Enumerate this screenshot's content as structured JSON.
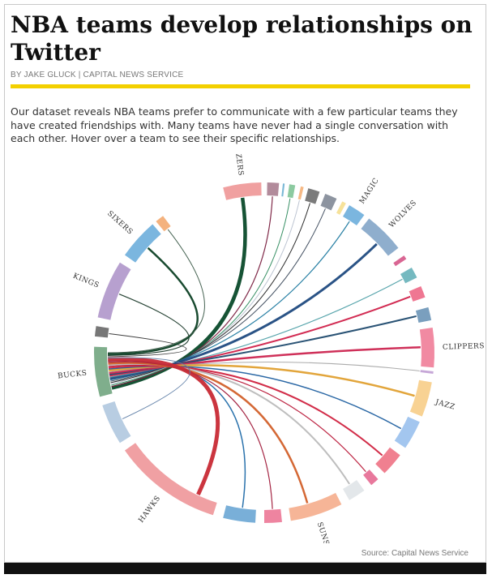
{
  "article": {
    "title": "NBA teams develop relationships on Twitter",
    "byline": "BY JAKE GLUCK | CAPITAL NEWS SERVICE",
    "intro": "Our dataset reveals NBA teams prefer to communicate with a few particular teams they have created friendships with. Many teams have never had a single conversation with each other. Hover over a team to see their specific relationships.",
    "source": "Source: Capital News Service"
  },
  "colors": {
    "accent_rule": "#f3d000",
    "footer_bar": "#111111"
  },
  "chart_data": {
    "type": "chord",
    "focus_team": "BUCKS",
    "groups": [
      {
        "label": "BLAZERS",
        "start": -14,
        "end": -1,
        "color": "#f0a0a0"
      },
      {
        "label": "",
        "start": 1,
        "end": 5,
        "color": "#b28b9b"
      },
      {
        "label": "",
        "start": 6.3,
        "end": 6.9,
        "color": "#7ab8d6"
      },
      {
        "label": "",
        "start": 8.5,
        "end": 10.5,
        "color": "#8ccaa0"
      },
      {
        "label": "",
        "start": 12.4,
        "end": 13.4,
        "color": "#f6b985"
      },
      {
        "label": "",
        "start": 15,
        "end": 19,
        "color": "#7b7b7b"
      },
      {
        "label": "",
        "start": 21,
        "end": 25.2,
        "color": "#8d94a0"
      },
      {
        "label": "",
        "start": 27.3,
        "end": 28.7,
        "color": "#f6e29a"
      },
      {
        "label": "MAGIC",
        "start": 30,
        "end": 36,
        "color": "#7bb6df"
      },
      {
        "label": "WOLVES",
        "start": 38,
        "end": 52,
        "color": "#8faecd"
      },
      {
        "label": "",
        "start": 55.2,
        "end": 56.6,
        "color": "#d96693"
      },
      {
        "label": "",
        "start": 60,
        "end": 63.8,
        "color": "#75b9c0"
      },
      {
        "label": "",
        "start": 67,
        "end": 71,
        "color": "#ef7792"
      },
      {
        "label": "",
        "start": 74.5,
        "end": 79,
        "color": "#7a9fbe"
      },
      {
        "label": "CLIPPERS",
        "start": 81.5,
        "end": 95,
        "color": "#f18aa2"
      },
      {
        "label": "",
        "start": 96.3,
        "end": 97.1,
        "color": "#c6a7d7"
      },
      {
        "label": "JAZZ",
        "start": 100,
        "end": 112,
        "color": "#f8d293"
      },
      {
        "label": "",
        "start": 114,
        "end": 124,
        "color": "#a3c6ef"
      },
      {
        "label": "",
        "start": 127,
        "end": 135,
        "color": "#f08090"
      },
      {
        "label": "",
        "start": 138,
        "end": 141,
        "color": "#e8789c"
      },
      {
        "label": "",
        "start": 144,
        "end": 150,
        "color": "#e3e7ea"
      },
      {
        "label": "SUNS",
        "start": 153,
        "end": 171,
        "color": "#f6b597"
      },
      {
        "label": "",
        "start": 174,
        "end": 180,
        "color": "#ee84a0"
      },
      {
        "label": "",
        "start": 183,
        "end": 194,
        "color": "#79afd8"
      },
      {
        "label": "HAWKS",
        "start": 197.5,
        "end": 235,
        "color": "#f0a0a3"
      },
      {
        "label": "",
        "start": 238,
        "end": 252,
        "color": "#b8cde2"
      },
      {
        "label": "BUCKS",
        "start": 255,
        "end": 272,
        "color": "#7fae8c"
      },
      {
        "label": "",
        "start": 275.5,
        "end": 279,
        "color": "#777777"
      },
      {
        "label": "KINGS",
        "start": 282,
        "end": 302,
        "color": "#b7a0cf"
      },
      {
        "label": "SIXERS",
        "start": 305,
        "end": 319,
        "color": "#7bb6df"
      },
      {
        "label": "",
        "start": 320.5,
        "end": 323.5,
        "color": "#f4b27e"
      }
    ],
    "links": [
      {
        "target": "BLAZERS",
        "target_angle": -8,
        "color": "#0a4a2a",
        "width": 4.5
      },
      {
        "target": "",
        "target_angle": 3,
        "color": "#7a2040",
        "width": 1.2
      },
      {
        "target": "",
        "target_angle": 9.5,
        "color": "#2d8a5d",
        "width": 1
      },
      {
        "target": "",
        "target_angle": 13,
        "color": "#b9c2d0",
        "width": 1
      },
      {
        "target": "",
        "target_angle": 17,
        "color": "#222222",
        "width": 1
      },
      {
        "target": "",
        "target_angle": 23,
        "color": "#3c4a5c",
        "width": 1
      },
      {
        "target": "MAGIC",
        "target_angle": 33,
        "color": "#1f7aa0",
        "width": 1.2
      },
      {
        "target": "WOLVES",
        "target_angle": 46,
        "color": "#1f4a80",
        "width": 3
      },
      {
        "target": "",
        "target_angle": 62,
        "color": "#4fa0a8",
        "width": 1.2
      },
      {
        "target": "",
        "target_angle": 69,
        "color": "#d0214a",
        "width": 2
      },
      {
        "target": "",
        "target_angle": 76.5,
        "color": "#1f4a6e",
        "width": 2
      },
      {
        "target": "CLIPPERS",
        "target_angle": 88,
        "color": "#cc2550",
        "width": 2.5
      },
      {
        "target": "",
        "target_angle": 96.7,
        "color": "#a8a8a8",
        "width": 1
      },
      {
        "target": "JAZZ",
        "target_angle": 106,
        "color": "#e0a030",
        "width": 2.5
      },
      {
        "target": "",
        "target_angle": 119,
        "color": "#2060a0",
        "width": 1.5
      },
      {
        "target": "",
        "target_angle": 131,
        "color": "#d0223f",
        "width": 2
      },
      {
        "target": "",
        "target_angle": 139.5,
        "color": "#b91a3a",
        "width": 1.2
      },
      {
        "target": "",
        "target_angle": 147,
        "color": "#bbbbbb",
        "width": 2
      },
      {
        "target": "SUNS",
        "target_angle": 164,
        "color": "#d2602a",
        "width": 2.5
      },
      {
        "target": "",
        "target_angle": 177,
        "color": "#a01a3a",
        "width": 1.2
      },
      {
        "target": "",
        "target_angle": 188,
        "color": "#1f6aa8",
        "width": 1.5
      },
      {
        "target": "HAWKS",
        "target_angle": 205,
        "color": "#c82a35",
        "width": 5
      },
      {
        "target": "",
        "target_angle": 245,
        "color": "#6080a8",
        "width": 1
      },
      {
        "target": "",
        "target_angle": 277,
        "color": "#333333",
        "width": 1
      },
      {
        "target": "KINGS",
        "target_angle": 292,
        "color": "#1b3a2a",
        "width": 1.2
      },
      {
        "target": "SIXERS",
        "target_angle": 312,
        "color": "#0c4024",
        "width": 2.5
      },
      {
        "target": "",
        "target_angle": 322,
        "color": "#3b5a48",
        "width": 1
      }
    ]
  }
}
